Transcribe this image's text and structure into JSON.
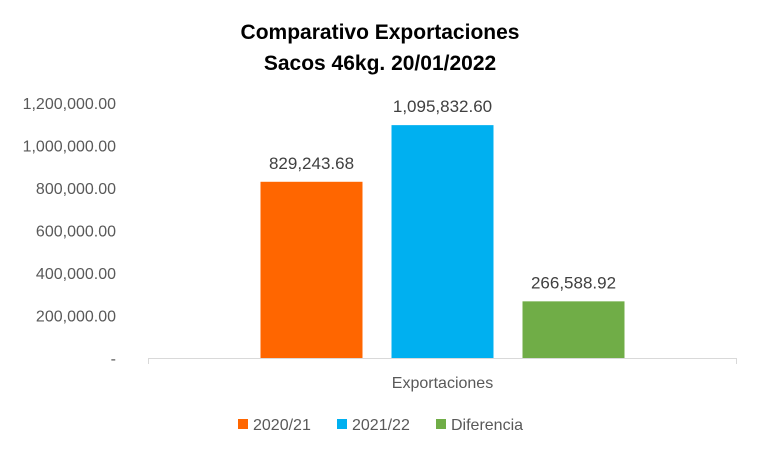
{
  "chart_data": {
    "type": "bar",
    "title_lines": [
      "Comparativo  Exportaciones",
      "Sacos 46kg. 20/01/2022"
    ],
    "categories": [
      "Exportaciones"
    ],
    "series": [
      {
        "name": "2020/21",
        "values": [
          829243.68
        ],
        "label": "829,243.68",
        "color": "#FF6600"
      },
      {
        "name": "2021/22",
        "values": [
          1095832.6
        ],
        "label": "1,095,832.60",
        "color": "#00B0F0"
      },
      {
        "name": "Diferencia",
        "values": [
          266588.92
        ],
        "label": "266,588.92",
        "color": "#70AD47"
      }
    ],
    "ylim": [
      0,
      1200000
    ],
    "yticks": [
      {
        "value": 0,
        "label": "-"
      },
      {
        "value": 200000,
        "label": "200,000.00"
      },
      {
        "value": 400000,
        "label": "400,000.00"
      },
      {
        "value": 600000,
        "label": "600,000.00"
      },
      {
        "value": 800000,
        "label": "800,000.00"
      },
      {
        "value": 1000000,
        "label": "1,000,000.00"
      },
      {
        "value": 1200000,
        "label": "1,200,000.00"
      }
    ],
    "grid": false,
    "legend_position": "bottom"
  }
}
